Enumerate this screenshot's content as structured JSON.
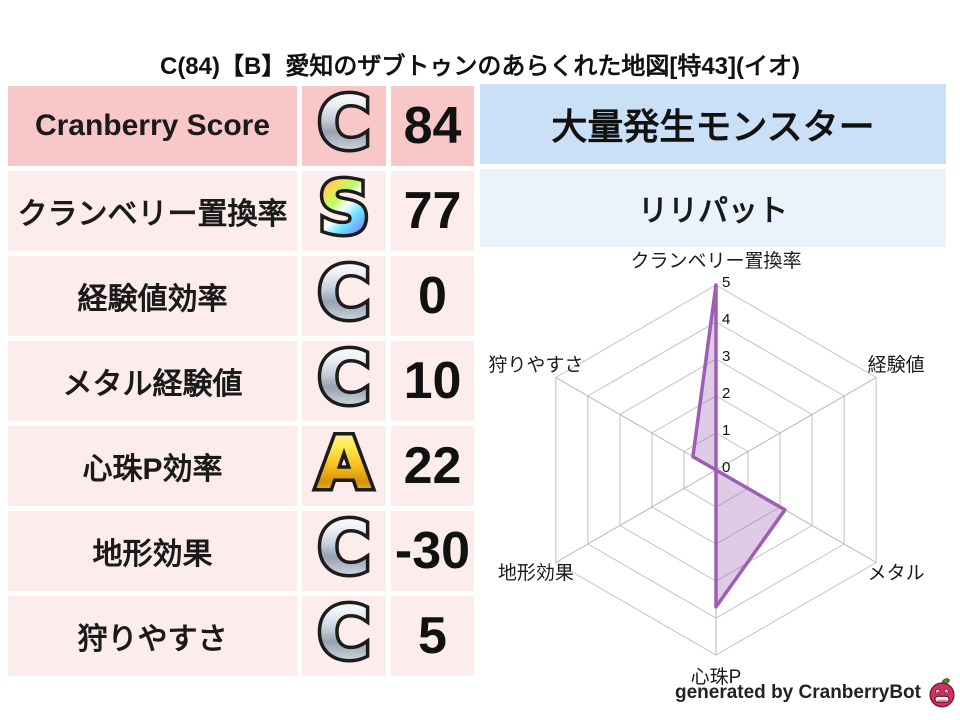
{
  "title": "C(84)【B】愛知のザブトゥンのあらくれた地図[特43](イオ)",
  "stats_table": {
    "rows": [
      {
        "label": "Cranberry Score",
        "grade": "C",
        "grade_style": "silver",
        "value": "84",
        "emphasis": true
      },
      {
        "label": "クランベリー置換率",
        "grade": "S",
        "grade_style": "rainbow",
        "value": "77",
        "emphasis": false
      },
      {
        "label": "経験値効率",
        "grade": "C",
        "grade_style": "silver",
        "value": "0",
        "emphasis": false
      },
      {
        "label": "メタル経験値",
        "grade": "C",
        "grade_style": "silver",
        "value": "10",
        "emphasis": false
      },
      {
        "label": "心珠P効率",
        "grade": "A",
        "grade_style": "gold",
        "value": "22",
        "emphasis": false
      },
      {
        "label": "地形効果",
        "grade": "C",
        "grade_style": "silver",
        "value": "-30",
        "emphasis": false
      },
      {
        "label": "狩りやすさ",
        "grade": "C",
        "grade_style": "silver",
        "value": "5",
        "emphasis": false
      }
    ]
  },
  "monster_panel": {
    "header": "大量発生モンスター",
    "value": "リリパット"
  },
  "chart_data": {
    "type": "radar",
    "categories": [
      "クランベリー置換率",
      "経験値",
      "メタル",
      "心珠P",
      "地形効果",
      "狩りやすさ"
    ],
    "values": [
      5,
      0,
      2.15,
      3.7,
      0,
      0.72
    ],
    "axis_order": "clockwise-from-top",
    "range": [
      0,
      5
    ],
    "ticks": [
      0,
      1,
      2,
      3,
      4,
      5
    ],
    "grid": "concentric-hexagons",
    "legend": "none",
    "stroke_color": "#9d5eb3",
    "fill_color": "rgba(160,98,181,0.33)",
    "grid_color": "#c2c2c2"
  },
  "footer": {
    "credit": "generated by CranberryBot",
    "logo": "cranberry-bot-logo"
  },
  "colors": {
    "pink_strong": "#f8c7c7",
    "pink_light": "#fdecec",
    "blue_strong": "#c9e0f7",
    "blue_light": "#eaf3fc",
    "text": "#111111"
  }
}
